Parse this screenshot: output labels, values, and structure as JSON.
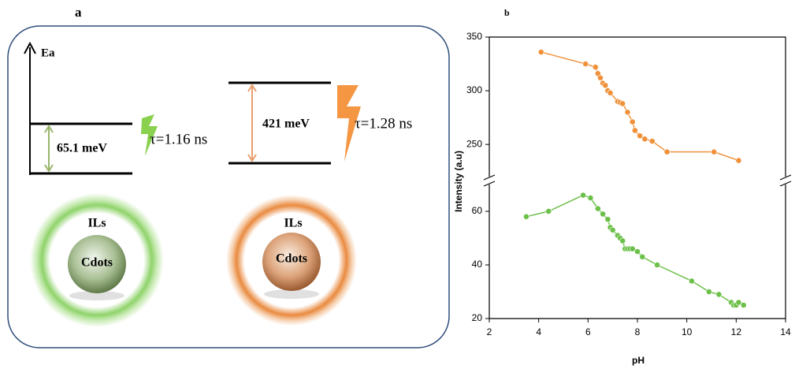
{
  "diagram": {
    "label": "a",
    "axis_label": "Ea",
    "left": {
      "energy": "65.1 meV",
      "lifetime": "τ=1.16 ns",
      "shell": "ILs",
      "core": "Cdots"
    },
    "right": {
      "energy": "421 meV",
      "lifetime": "τ=1.28 ns",
      "shell": "ILs",
      "core": "Cdots"
    }
  },
  "chart_data": {
    "type": "line",
    "title": "b",
    "x_label": "pH",
    "y_label": "Intensity (a.u)",
    "xlim": [
      2,
      14
    ],
    "xticks": [
      2,
      4,
      6,
      8,
      10,
      12,
      14
    ],
    "ylim": [
      20,
      70
    ],
    "yticks": [
      20,
      40,
      60
    ],
    "y2lim": [
      220,
      350
    ],
    "y2ticks": [
      250,
      300,
      350
    ],
    "series": [
      {
        "color": "#f0913a",
        "axis": "y2",
        "x": [
          4.1,
          5.9,
          6.3,
          6.4,
          6.5,
          6.6,
          6.7,
          6.8,
          6.9,
          7.2,
          7.3,
          7.4,
          7.6,
          7.8,
          7.9,
          8.1,
          8.3,
          8.6,
          9.2,
          11.1,
          12.1
        ],
        "values": [
          336,
          325,
          322,
          316,
          312,
          307,
          305,
          300,
          298,
          290,
          289,
          288,
          280,
          271,
          263,
          258,
          255,
          253,
          243,
          243,
          235
        ]
      },
      {
        "color": "#6cc04a",
        "x": [
          3.5,
          4.4,
          5.8,
          6.1,
          6.4,
          6.6,
          6.8,
          6.9,
          7.0,
          7.2,
          7.3,
          7.4,
          7.5,
          7.6,
          7.7,
          7.8,
          8.0,
          8.2,
          8.8,
          10.2,
          10.9,
          11.3,
          11.8,
          11.9,
          12.0,
          12.1,
          12.3
        ],
        "values": [
          58,
          60,
          66,
          65,
          61,
          59,
          57,
          54,
          53,
          51,
          50,
          49,
          46,
          46,
          46,
          46,
          45,
          43,
          40,
          34,
          30,
          29,
          26,
          25,
          25,
          26,
          25
        ]
      }
    ]
  }
}
